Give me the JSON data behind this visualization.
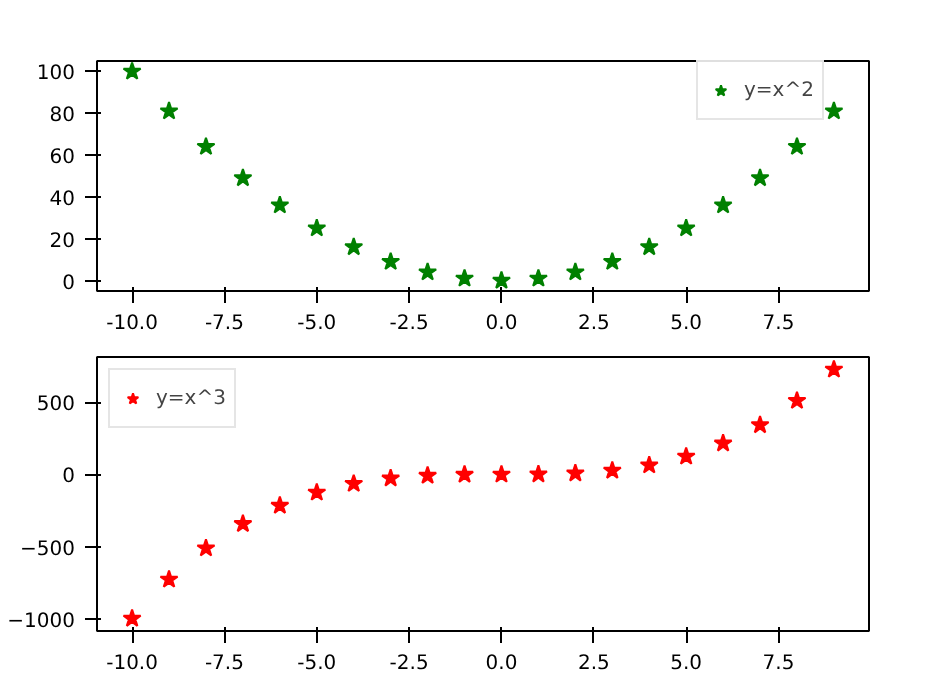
{
  "chart_data": [
    {
      "type": "scatter",
      "x": [
        -10,
        -9,
        -8,
        -7,
        -6,
        -5,
        -4,
        -3,
        -2,
        -1,
        0,
        1,
        2,
        3,
        4,
        5,
        6,
        7,
        8,
        9
      ],
      "series": [
        {
          "name": "y=x^2",
          "color": "#008000",
          "values": [
            100,
            81,
            64,
            49,
            36,
            25,
            16,
            9,
            4,
            1,
            0,
            1,
            4,
            9,
            16,
            25,
            36,
            49,
            64,
            81
          ]
        }
      ],
      "xlim": [
        -10.95,
        9.95
      ],
      "ylim": [
        -5,
        105
      ],
      "xticks": [
        {
          "value": -10,
          "label": "-10.0"
        },
        {
          "value": -7.5,
          "label": "-7.5"
        },
        {
          "value": -5,
          "label": "-5.0"
        },
        {
          "value": -2.5,
          "label": "-2.5"
        },
        {
          "value": 0,
          "label": "0.0"
        },
        {
          "value": 2.5,
          "label": "2.5"
        },
        {
          "value": 5,
          "label": "5.0"
        },
        {
          "value": 7.5,
          "label": "7.5"
        }
      ],
      "yticks": [
        0,
        20,
        40,
        60,
        80,
        100
      ],
      "legend": "top right",
      "marker": "star",
      "grid": false
    },
    {
      "type": "scatter",
      "x": [
        -10,
        -9,
        -8,
        -7,
        -6,
        -5,
        -4,
        -3,
        -2,
        -1,
        0,
        1,
        2,
        3,
        4,
        5,
        6,
        7,
        8,
        9
      ],
      "series": [
        {
          "name": "y=x^3",
          "color": "#ff0000",
          "values": [
            -1000,
            -729,
            -512,
            -343,
            -216,
            -125,
            -64,
            -27,
            -8,
            -1,
            0,
            1,
            8,
            27,
            64,
            125,
            216,
            343,
            512,
            729
          ]
        }
      ],
      "xlim": [
        -10.95,
        9.95
      ],
      "ylim": [
        -1086.45,
        815.45
      ],
      "xticks": [
        {
          "value": -10,
          "label": "-10.0"
        },
        {
          "value": -7.5,
          "label": "-7.5"
        },
        {
          "value": -5,
          "label": "-5.0"
        },
        {
          "value": -2.5,
          "label": "-2.5"
        },
        {
          "value": 0,
          "label": "0.0"
        },
        {
          "value": 2.5,
          "label": "2.5"
        },
        {
          "value": 5,
          "label": "5.0"
        },
        {
          "value": 7.5,
          "label": "7.5"
        }
      ],
      "yticks": [
        -1000,
        -500,
        0,
        500
      ],
      "legend": "top left",
      "marker": "star",
      "grid": false
    }
  ]
}
